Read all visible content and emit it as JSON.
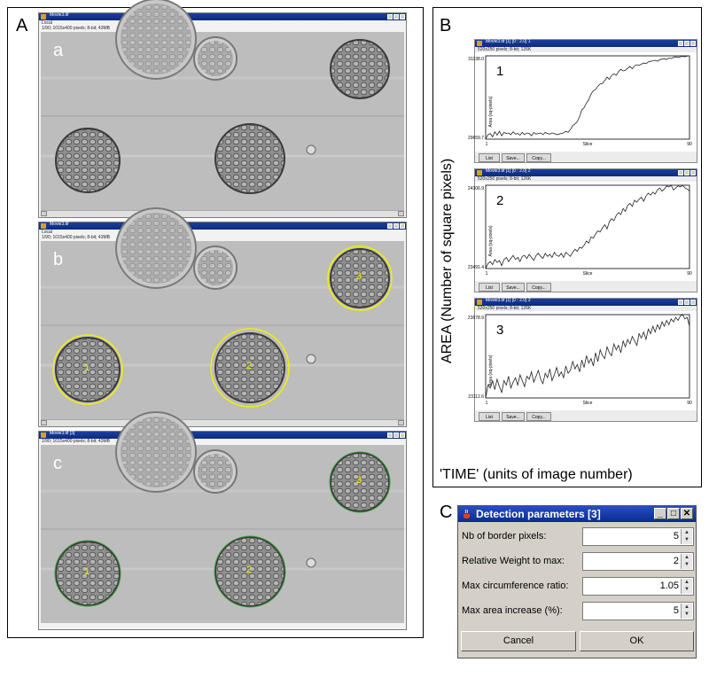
{
  "panels": {
    "A": {
      "letter": "A",
      "windows": [
        {
          "title": "Movie3.tif",
          "info_line1": "Local",
          "info_line2": "1/90; 1015x400 pixels; 8-bit; 43MB",
          "letter": "a",
          "roi_numbers": []
        },
        {
          "title": "Movie3.tif",
          "info_line1": "Local",
          "info_line2": "1/90; 1015x400 pixels; 8-bit; 43MB",
          "letter": "b",
          "roi_numbers": [
            "1",
            "2",
            "3"
          ]
        },
        {
          "title": "Movie3.tif [3]",
          "info_line1": "",
          "info_line2": "1/90; 1015x400 pixels; 8-bit; 43MB",
          "letter": "c",
          "roi_numbers": [
            "1",
            "2",
            "3"
          ]
        }
      ]
    },
    "B": {
      "letter": "B",
      "y_axis_title": "AREA   (Number of square pixels)",
      "x_axis_title": "'TIME' (units of image number)",
      "plots": [
        {
          "title": "Movie3.tif [1] [0 : 2.0] 1",
          "info": "520x250 pixels; 8-bit; 126K",
          "number": "1",
          "ymax_label": "31138.0",
          "ymin_label": "29659.7",
          "xmin_label": "1",
          "xmax_label": "90",
          "xlabel": "Slice",
          "ylabel": "Area (sq-pixels)"
        },
        {
          "title": "Movie3.tif [1] [0 : 2.0] 2",
          "info": "520x250 pixels; 8-bit; 126K",
          "number": "2",
          "ymax_label": "24306.9",
          "ymin_label": "23491.4",
          "xmin_label": "1",
          "xmax_label": "90",
          "xlabel": "Slice",
          "ylabel": "Area (sq-pixels)"
        },
        {
          "title": "Movie3.tif [1] [0 : 2.0] 3",
          "info": "520x250 pixels; 8-bit; 126K",
          "number": "3",
          "ymax_label": "23678.9",
          "ymin_label": "23112.6",
          "xmin_label": "1",
          "xmax_label": "90",
          "xlabel": "Slice",
          "ylabel": "Area (sq-pixels)"
        }
      ],
      "buttons": {
        "list": "List",
        "save": "Save...",
        "copy": "Copy..."
      }
    },
    "C": {
      "letter": "C",
      "dialog_title": "Detection parameters [3]",
      "fields": [
        {
          "label": "Nb of border pixels:",
          "value": "5"
        },
        {
          "label": "Relative Weight to max:",
          "value": "2"
        },
        {
          "label": "Max circumference ratio:",
          "value": "1.05"
        },
        {
          "label": "Max area increase (%):",
          "value": "5"
        }
      ],
      "cancel_label": "Cancel",
      "ok_label": "OK"
    }
  },
  "chart_data": [
    {
      "type": "line",
      "series": [
        {
          "values": [
            29660,
            29740,
            29760,
            29700,
            29790,
            29730,
            29800,
            29720,
            29780,
            29760,
            29770,
            29740,
            29790,
            29750,
            29760,
            29730,
            29780,
            29740,
            29770,
            29760,
            29720,
            29780,
            29750,
            29760,
            29770,
            29740,
            29780,
            29760,
            29750,
            29770,
            29760,
            29740,
            29750,
            29760,
            29770,
            29800,
            29780,
            29830,
            29900,
            29930,
            29970,
            30060,
            30180,
            30220,
            30300,
            30360,
            30460,
            30520,
            30540,
            30600,
            30640,
            30650,
            30700,
            30760,
            30720,
            30790,
            30820,
            30790,
            30860,
            30900,
            30870,
            30880,
            30920,
            30950,
            30910,
            30960,
            30980,
            30970,
            30990,
            31010,
            31000,
            31030,
            31040,
            31050,
            31060,
            31040,
            31070,
            31080,
            31090,
            31070,
            31100,
            31090,
            31110,
            31120,
            31110,
            31120,
            31130,
            31120,
            31135,
            31138
          ]
        }
      ]
    },
    {
      "type": "line",
      "series": [
        {
          "values": [
            23491,
            23540,
            23560,
            23530,
            23580,
            23550,
            23570,
            23520,
            23580,
            23600,
            23560,
            23590,
            23620,
            23580,
            23600,
            23560,
            23610,
            23620,
            23590,
            23630,
            23600,
            23570,
            23620,
            23640,
            23610,
            23590,
            23640,
            23610,
            23630,
            23600,
            23650,
            23620,
            23610,
            23640,
            23600,
            23650,
            23630,
            23610,
            23650,
            23680,
            23660,
            23700,
            23690,
            23720,
            23760,
            23740,
            23800,
            23790,
            23830,
            23860,
            23850,
            23890,
            23920,
            23880,
            23950,
            23980,
            23960,
            24010,
            24040,
            24020,
            24080,
            24050,
            24110,
            24130,
            24100,
            24160,
            24140,
            24170,
            24190,
            24150,
            24200,
            24230,
            24210,
            24240,
            24220,
            24260,
            24280,
            24250,
            24270,
            24300,
            24290,
            24307,
            24260,
            24280,
            24300,
            24290,
            24306,
            24280,
            24270,
            24250
          ]
        }
      ]
    },
    {
      "type": "line",
      "series": [
        {
          "values": [
            23112,
            23200,
            23180,
            23230,
            23170,
            23240,
            23190,
            23150,
            23230,
            23200,
            23260,
            23180,
            23220,
            23250,
            23200,
            23270,
            23230,
            23190,
            23260,
            23240,
            23290,
            23220,
            23260,
            23300,
            23240,
            23210,
            23280,
            23250,
            23310,
            23230,
            23270,
            23320,
            23260,
            23290,
            23250,
            23330,
            23280,
            23300,
            23360,
            23310,
            23340,
            23290,
            23370,
            23320,
            23400,
            23350,
            23380,
            23330,
            23420,
            23360,
            23440,
            23400,
            23380,
            23460,
            23420,
            23400,
            23480,
            23440,
            23470,
            23420,
            23500,
            23460,
            23510,
            23480,
            23530,
            23500,
            23470,
            23550,
            23520,
            23560,
            23510,
            23580,
            23550,
            23600,
            23560,
            23610,
            23580,
            23630,
            23600,
            23640,
            23610,
            23650,
            23630,
            23660,
            23640,
            23670,
            23679,
            23650,
            23660,
            23600
          ]
        }
      ]
    }
  ]
}
